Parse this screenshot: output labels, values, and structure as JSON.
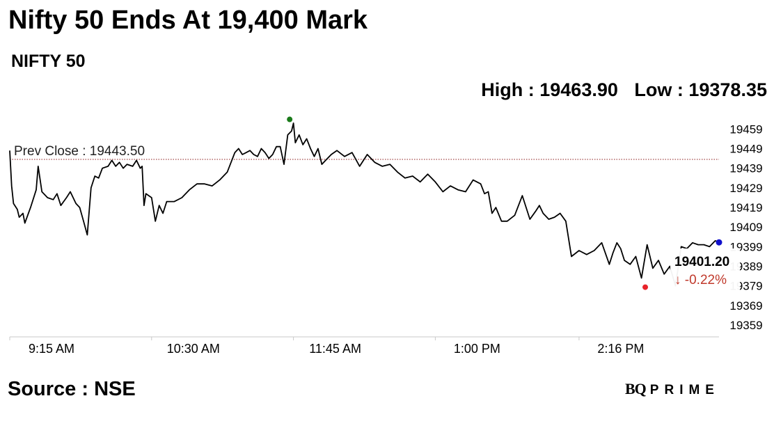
{
  "title": "Nifty 50 Ends At 19,400 Mark",
  "subtitle": "NIFTY 50",
  "high_label": "High : 19463.90",
  "low_label": "Low : 19378.35",
  "source": "Source : NSE",
  "brand": {
    "bq": "BQ",
    "prime": "PRIME"
  },
  "colors": {
    "line": "#000000",
    "prev_close_line": "#8b1a1a",
    "high_marker": "#1a7a1a",
    "low_marker": "#e8232a",
    "last_marker": "#1010cc",
    "change_negative": "#c0392b"
  },
  "chart_data": {
    "type": "line",
    "title": "NIFTY 50",
    "ylim": [
      19353,
      19468
    ],
    "y_ticks": [
      19459,
      19449,
      19439,
      19429,
      19419,
      19409,
      19399,
      19389,
      19379,
      19369,
      19359
    ],
    "x_tick_labels": [
      "9:15 AM",
      "10:30 AM",
      "11:45 AM",
      "1:00 PM",
      "2:16 PM"
    ],
    "x_tick_minutes": [
      555,
      630,
      705,
      780,
      856
    ],
    "xlim_minutes": [
      555,
      930
    ],
    "prev_close": 19443.5,
    "prev_close_label": "Prev Close : 19443.50",
    "high": 19463.9,
    "low": 19378.35,
    "last_value": "19401.20",
    "last_change": "↓ -0.22%",
    "series": [
      {
        "x": [
          555,
          556,
          557,
          559,
          560,
          562,
          563,
          566,
          569,
          570,
          572,
          575,
          578,
          580,
          582,
          585,
          587,
          590,
          592,
          594,
          596,
          598,
          600,
          602,
          604,
          607,
          609,
          611,
          613,
          615,
          617,
          620,
          622,
          624,
          625,
          626,
          627,
          630,
          632,
          634,
          636,
          638,
          642,
          646,
          650,
          654,
          658,
          662,
          666,
          670,
          674,
          676,
          678,
          680,
          682,
          684,
          686,
          688,
          690,
          692,
          694,
          696,
          698,
          700,
          702,
          704,
          705,
          706,
          708,
          710,
          712,
          714,
          716,
          718,
          720,
          722,
          725,
          728,
          732,
          736,
          740,
          744,
          748,
          752,
          756,
          760,
          764,
          768,
          772,
          776,
          780,
          784,
          788,
          792,
          796,
          800,
          804,
          806,
          808,
          810,
          812,
          815,
          818,
          822,
          826,
          830,
          833,
          835,
          837,
          840,
          843,
          846,
          849,
          852,
          856,
          860,
          864,
          868,
          872,
          874,
          876,
          878,
          880,
          883,
          886,
          889,
          892,
          895,
          898,
          901,
          904,
          907,
          910,
          913,
          916,
          919,
          922,
          925,
          928,
          930
        ],
        "values": [
          19448,
          19430,
          19421,
          19418,
          19414,
          19416,
          19411,
          19419,
          19428,
          19440,
          19427,
          19424,
          19423,
          19426,
          19420,
          19424,
          19427,
          19421,
          19419,
          19412,
          19405,
          19429,
          19435,
          19434,
          19439,
          19440,
          19443,
          19440,
          19442,
          19439,
          19441,
          19440,
          19443,
          19439,
          19440,
          19420,
          19426,
          19424,
          19412,
          19420,
          19416,
          19422,
          19422,
          19424,
          19428,
          19431,
          19431,
          19430,
          19433,
          19437,
          19447,
          19449,
          19446,
          19447,
          19448,
          19446,
          19445,
          19449,
          19447,
          19444,
          19446,
          19450,
          19450,
          19441,
          19456,
          19458,
          19462,
          19452,
          19456,
          19451,
          19454,
          19449,
          19445,
          19449,
          19441,
          19443,
          19446,
          19448,
          19445,
          19447,
          19440,
          19446,
          19442,
          19440,
          19441,
          19437,
          19434,
          19435,
          19432,
          19436,
          19432,
          19427,
          19430,
          19428,
          19427,
          19433,
          19431,
          19426,
          19427,
          19416,
          19419,
          19412,
          19412,
          19415,
          19425,
          19413,
          19417,
          19420,
          19416,
          19413,
          19414,
          19416,
          19412,
          19394,
          19397,
          19395,
          19397,
          19401,
          19390,
          19396,
          19401,
          19398,
          19392,
          19390,
          19394,
          19383,
          19400,
          19388,
          19392,
          19385,
          19389,
          19379,
          19399,
          19398,
          19401,
          19400,
          19400,
          19399,
          19402,
          19401.2
        ]
      }
    ],
    "markers": [
      {
        "name": "high",
        "x": 703,
        "value": 19463.9
      },
      {
        "name": "low",
        "x": 891,
        "value": 19378.35
      },
      {
        "name": "last",
        "x": 930,
        "value": 19401.2
      }
    ]
  }
}
